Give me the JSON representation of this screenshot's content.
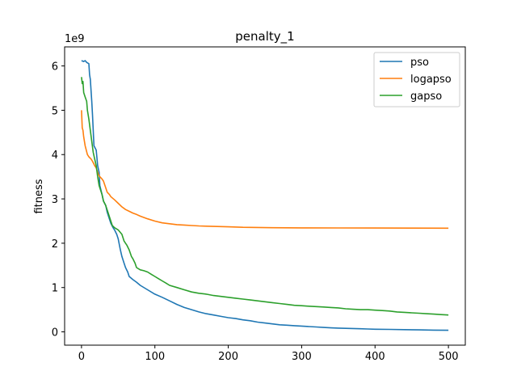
{
  "chart_data": {
    "type": "line",
    "title": "penalty_1",
    "xlabel": "",
    "ylabel": "fitness",
    "y_offset_text": "1e9",
    "xlim": [
      -23,
      523
    ],
    "ylim": [
      -0.3,
      6.43
    ],
    "x_ticks": [
      0,
      100,
      200,
      300,
      400,
      500
    ],
    "x_tick_labels": [
      "0",
      "100",
      "200",
      "300",
      "400",
      "500"
    ],
    "y_ticks": [
      0,
      1,
      2,
      3,
      4,
      5,
      6
    ],
    "y_tick_labels": [
      "0",
      "1",
      "2",
      "3",
      "4",
      "5",
      "6"
    ],
    "grid": false,
    "legend_position": "upper right",
    "series": [
      {
        "name": "pso",
        "color": "#1f77b4",
        "points": [
          [
            0,
            6.12
          ],
          [
            3,
            6.1
          ],
          [
            5,
            6.12
          ],
          [
            7,
            6.08
          ],
          [
            10,
            6.05
          ],
          [
            11,
            5.8
          ],
          [
            12,
            5.7
          ],
          [
            14,
            5.2
          ],
          [
            15,
            4.9
          ],
          [
            17,
            4.2
          ],
          [
            20,
            4.1
          ],
          [
            22,
            3.75
          ],
          [
            24,
            3.6
          ],
          [
            25,
            3.3
          ],
          [
            28,
            3.1
          ],
          [
            30,
            2.95
          ],
          [
            33,
            2.85
          ],
          [
            35,
            2.7
          ],
          [
            38,
            2.55
          ],
          [
            40,
            2.45
          ],
          [
            43,
            2.35
          ],
          [
            45,
            2.3
          ],
          [
            48,
            2.2
          ],
          [
            50,
            2.1
          ],
          [
            53,
            1.85
          ],
          [
            55,
            1.7
          ],
          [
            58,
            1.55
          ],
          [
            60,
            1.45
          ],
          [
            63,
            1.35
          ],
          [
            65,
            1.25
          ],
          [
            70,
            1.18
          ],
          [
            75,
            1.12
          ],
          [
            80,
            1.05
          ],
          [
            90,
            0.95
          ],
          [
            100,
            0.85
          ],
          [
            110,
            0.78
          ],
          [
            120,
            0.7
          ],
          [
            130,
            0.62
          ],
          [
            140,
            0.55
          ],
          [
            150,
            0.5
          ],
          [
            160,
            0.45
          ],
          [
            170,
            0.41
          ],
          [
            180,
            0.38
          ],
          [
            190,
            0.35
          ],
          [
            200,
            0.32
          ],
          [
            210,
            0.3
          ],
          [
            220,
            0.27
          ],
          [
            230,
            0.25
          ],
          [
            240,
            0.22
          ],
          [
            250,
            0.2
          ],
          [
            260,
            0.18
          ],
          [
            270,
            0.16
          ],
          [
            280,
            0.15
          ],
          [
            290,
            0.14
          ],
          [
            300,
            0.13
          ],
          [
            310,
            0.12
          ],
          [
            320,
            0.11
          ],
          [
            330,
            0.1
          ],
          [
            340,
            0.09
          ],
          [
            350,
            0.085
          ],
          [
            360,
            0.08
          ],
          [
            370,
            0.075
          ],
          [
            380,
            0.07
          ],
          [
            390,
            0.065
          ],
          [
            400,
            0.06
          ],
          [
            420,
            0.055
          ],
          [
            440,
            0.05
          ],
          [
            460,
            0.045
          ],
          [
            480,
            0.04
          ],
          [
            500,
            0.035
          ]
        ]
      },
      {
        "name": "logapso",
        "color": "#ff7f0e",
        "points": [
          [
            0,
            5.0
          ],
          [
            1,
            4.6
          ],
          [
            2,
            4.55
          ],
          [
            3,
            4.4
          ],
          [
            5,
            4.2
          ],
          [
            8,
            4.0
          ],
          [
            10,
            3.95
          ],
          [
            13,
            3.9
          ],
          [
            15,
            3.85
          ],
          [
            18,
            3.75
          ],
          [
            20,
            3.7
          ],
          [
            23,
            3.55
          ],
          [
            25,
            3.5
          ],
          [
            28,
            3.45
          ],
          [
            30,
            3.4
          ],
          [
            33,
            3.25
          ],
          [
            35,
            3.15
          ],
          [
            38,
            3.1
          ],
          [
            40,
            3.05
          ],
          [
            45,
            2.98
          ],
          [
            50,
            2.9
          ],
          [
            55,
            2.82
          ],
          [
            60,
            2.76
          ],
          [
            65,
            2.72
          ],
          [
            70,
            2.68
          ],
          [
            75,
            2.65
          ],
          [
            80,
            2.61
          ],
          [
            90,
            2.55
          ],
          [
            100,
            2.5
          ],
          [
            110,
            2.46
          ],
          [
            120,
            2.44
          ],
          [
            130,
            2.42
          ],
          [
            140,
            2.41
          ],
          [
            150,
            2.4
          ],
          [
            160,
            2.39
          ],
          [
            170,
            2.385
          ],
          [
            180,
            2.38
          ],
          [
            200,
            2.37
          ],
          [
            220,
            2.36
          ],
          [
            240,
            2.355
          ],
          [
            260,
            2.35
          ],
          [
            280,
            2.348
          ],
          [
            300,
            2.346
          ],
          [
            350,
            2.344
          ],
          [
            400,
            2.342
          ],
          [
            450,
            2.341
          ],
          [
            500,
            2.34
          ]
        ]
      },
      {
        "name": "gapso",
        "color": "#2ca02c",
        "points": [
          [
            0,
            5.75
          ],
          [
            1,
            5.6
          ],
          [
            2,
            5.65
          ],
          [
            3,
            5.4
          ],
          [
            5,
            5.3
          ],
          [
            7,
            5.2
          ],
          [
            8,
            5.0
          ],
          [
            10,
            4.8
          ],
          [
            12,
            4.55
          ],
          [
            14,
            4.3
          ],
          [
            16,
            4.05
          ],
          [
            18,
            3.9
          ],
          [
            20,
            3.75
          ],
          [
            22,
            3.5
          ],
          [
            24,
            3.3
          ],
          [
            26,
            3.2
          ],
          [
            28,
            3.1
          ],
          [
            30,
            2.95
          ],
          [
            33,
            2.85
          ],
          [
            35,
            2.75
          ],
          [
            38,
            2.6
          ],
          [
            40,
            2.5
          ],
          [
            42,
            2.4
          ],
          [
            45,
            2.35
          ],
          [
            50,
            2.3
          ],
          [
            55,
            2.2
          ],
          [
            58,
            2.05
          ],
          [
            60,
            2.0
          ],
          [
            62,
            1.95
          ],
          [
            65,
            1.85
          ],
          [
            68,
            1.7
          ],
          [
            70,
            1.65
          ],
          [
            73,
            1.55
          ],
          [
            75,
            1.45
          ],
          [
            80,
            1.4
          ],
          [
            85,
            1.38
          ],
          [
            90,
            1.35
          ],
          [
            95,
            1.3
          ],
          [
            100,
            1.25
          ],
          [
            105,
            1.2
          ],
          [
            110,
            1.15
          ],
          [
            115,
            1.1
          ],
          [
            120,
            1.05
          ],
          [
            130,
            1.0
          ],
          [
            140,
            0.95
          ],
          [
            150,
            0.9
          ],
          [
            160,
            0.87
          ],
          [
            170,
            0.85
          ],
          [
            180,
            0.82
          ],
          [
            190,
            0.8
          ],
          [
            200,
            0.78
          ],
          [
            210,
            0.76
          ],
          [
            220,
            0.74
          ],
          [
            230,
            0.72
          ],
          [
            240,
            0.7
          ],
          [
            250,
            0.68
          ],
          [
            260,
            0.66
          ],
          [
            270,
            0.64
          ],
          [
            280,
            0.62
          ],
          [
            290,
            0.6
          ],
          [
            300,
            0.59
          ],
          [
            310,
            0.58
          ],
          [
            320,
            0.57
          ],
          [
            330,
            0.56
          ],
          [
            340,
            0.55
          ],
          [
            350,
            0.54
          ],
          [
            360,
            0.52
          ],
          [
            370,
            0.51
          ],
          [
            380,
            0.5
          ],
          [
            390,
            0.5
          ],
          [
            400,
            0.49
          ],
          [
            410,
            0.48
          ],
          [
            420,
            0.47
          ],
          [
            430,
            0.45
          ],
          [
            440,
            0.44
          ],
          [
            450,
            0.43
          ],
          [
            460,
            0.42
          ],
          [
            470,
            0.41
          ],
          [
            480,
            0.4
          ],
          [
            490,
            0.39
          ],
          [
            500,
            0.38
          ]
        ]
      }
    ]
  }
}
